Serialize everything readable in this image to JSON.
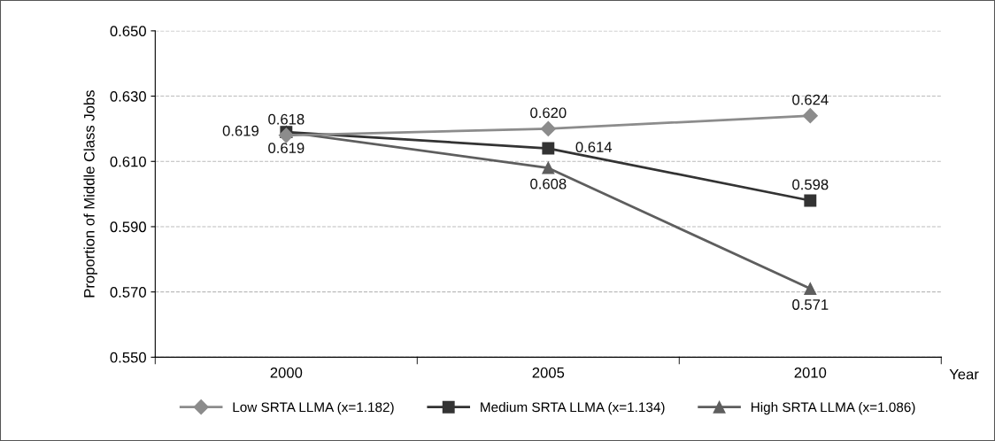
{
  "chart_data": {
    "type": "line",
    "xlabel": "Year",
    "ylabel": "Proportion of Middle Class Jobs",
    "categories": [
      "2000",
      "2005",
      "2010"
    ],
    "series": [
      {
        "name": "Low SRTA LLMA (x=1.182)",
        "color": "#8c8c8c",
        "marker": "diamond",
        "values": [
          0.618,
          0.62,
          0.624
        ],
        "value_labels": [
          "0.618",
          "0.620",
          "0.624"
        ]
      },
      {
        "name": "Medium SRTA LLMA (x=1.134)",
        "color": "#333333",
        "marker": "square",
        "values": [
          0.619,
          0.614,
          0.598
        ],
        "value_labels": [
          "0.619",
          "0.614",
          "0.598"
        ]
      },
      {
        "name": "High SRTA LLMA (x=1.086)",
        "color": "#5e5e5e",
        "marker": "triangle",
        "values": [
          0.619,
          0.608,
          0.571
        ],
        "value_labels": [
          "0.619",
          "0.608",
          "0.571"
        ]
      }
    ],
    "ylim": [
      0.55,
      0.65
    ],
    "yticks": [
      {
        "value": 0.55,
        "label": "0.550"
      },
      {
        "value": 0.57,
        "label": "0.570"
      },
      {
        "value": 0.59,
        "label": "0.590"
      },
      {
        "value": 0.61,
        "label": "0.610"
      },
      {
        "value": 0.63,
        "label": "0.630"
      },
      {
        "value": 0.65,
        "label": "0.650"
      }
    ],
    "grid": "y",
    "legend": "bottom",
    "line_style": "solid"
  }
}
